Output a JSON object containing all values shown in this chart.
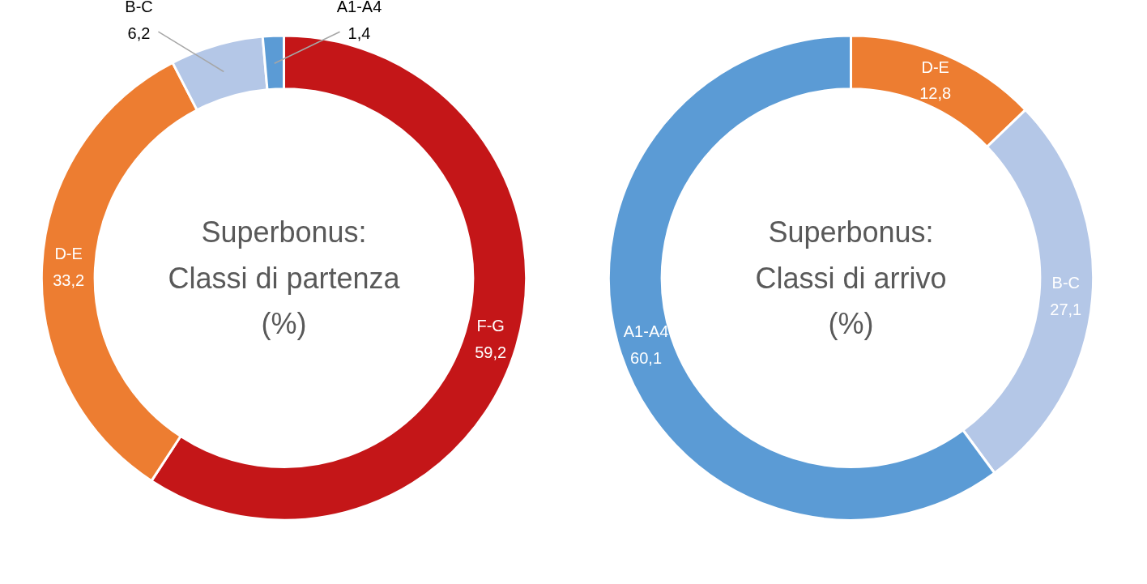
{
  "chart_data": [
    {
      "type": "donut",
      "title": "Superbonus:\nClassi di partenza\n(%)",
      "categories": [
        "F-G",
        "D-E",
        "B-C",
        "A1-A4"
      ],
      "values": [
        59.2,
        33.2,
        6.2,
        1.4
      ],
      "colors": [
        "#c41618",
        "#ed7d31",
        "#b4c7e7",
        "#5b9bd5"
      ],
      "value_labels": [
        "59,2",
        "33,2",
        "6,2",
        "1,4"
      ]
    },
    {
      "type": "donut",
      "title": "Superbonus:\nClassi di arrivo\n(%)",
      "categories": [
        "D-E",
        "B-C",
        "A1-A4"
      ],
      "values": [
        12.8,
        27.1,
        60.1
      ],
      "colors": [
        "#ed7d31",
        "#b4c7e7",
        "#5b9bd5"
      ],
      "value_labels": [
        "12,8",
        "27,1",
        "60,1"
      ]
    }
  ]
}
